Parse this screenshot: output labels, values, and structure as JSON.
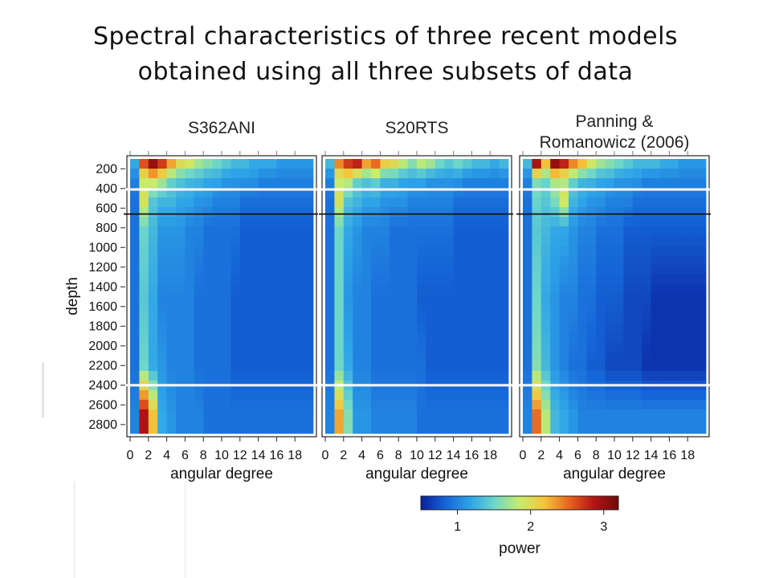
{
  "slide": {
    "title_line1": "Spectral characteristics of three recent models",
    "title_line2": "obtained using all three subsets of data"
  },
  "chart_data": {
    "type": "heatmap",
    "ylabel": "depth",
    "xlabel": "angular degree",
    "x_ticks": [
      "0",
      "2",
      "4",
      "6",
      "8",
      "10",
      "12",
      "14",
      "16",
      "18"
    ],
    "y_ticks": [
      "200",
      "400",
      "600",
      "800",
      "1000",
      "1200",
      "1400",
      "1600",
      "1800",
      "2000",
      "2200",
      "2400",
      "2600",
      "2800"
    ],
    "ylim": [
      100,
      2891
    ],
    "xlim": [
      0,
      20
    ],
    "reference_depths": [
      {
        "depth": 410,
        "color": "#ffffff"
      },
      {
        "depth": 660,
        "color": "#111111"
      },
      {
        "depth": 2400,
        "color": "#ffffff"
      }
    ],
    "colorbar": {
      "label": "power",
      "ticks": [
        "1",
        "2",
        "3"
      ],
      "range": [
        0.5,
        3.2
      ],
      "colors": [
        "#0a1f9e",
        "#1565d8",
        "#2ea4e8",
        "#6ed8c8",
        "#c8ec6a",
        "#f5c43a",
        "#e8641e",
        "#b41414",
        "#6e0a0a"
      ]
    },
    "panels": [
      {
        "title_lines": [
          "S362ANI"
        ],
        "profile": [
          [
            150,
            [
              1.2,
              2.6,
              3.0,
              2.7,
              2.3,
              2.0,
              1.9,
              1.7,
              1.6,
              1.5,
              1.4,
              1.3,
              1.3,
              1.2,
              1.2,
              1.2,
              1.1,
              1.1,
              1.1,
              1.1
            ]
          ],
          [
            300,
            [
              1.0,
              1.8,
              2.0,
              1.8,
              1.5,
              1.4,
              1.3,
              1.3,
              1.2,
              1.2,
              1.1,
              1.1,
              1.1,
              1.1,
              1.0,
              1.0,
              1.0,
              1.0,
              1.0,
              1.0
            ]
          ],
          [
            500,
            [
              0.9,
              2.0,
              1.4,
              1.3,
              1.3,
              1.2,
              1.2,
              1.1,
              1.1,
              1.0,
              1.0,
              1.0,
              0.9,
              0.9,
              0.9,
              0.9,
              0.9,
              0.9,
              0.9,
              0.9
            ]
          ],
          [
            800,
            [
              0.9,
              1.5,
              1.3,
              1.1,
              1.1,
              1.1,
              1.0,
              1.0,
              0.9,
              0.9,
              0.9,
              0.9,
              0.8,
              0.8,
              0.8,
              0.8,
              0.8,
              0.8,
              0.8,
              0.8
            ]
          ],
          [
            1500,
            [
              0.9,
              1.4,
              1.2,
              1.0,
              1.0,
              1.0,
              1.0,
              0.9,
              0.9,
              0.9,
              0.9,
              0.8,
              0.8,
              0.8,
              0.8,
              0.8,
              0.8,
              0.8,
              0.8,
              0.8
            ]
          ],
          [
            2200,
            [
              0.9,
              1.5,
              1.2,
              1.1,
              1.0,
              1.0,
              1.0,
              0.9,
              0.9,
              0.9,
              0.9,
              0.8,
              0.8,
              0.8,
              0.8,
              0.8,
              0.8,
              0.8,
              0.8,
              0.8
            ]
          ],
          [
            2700,
            [
              1.0,
              2.9,
              2.2,
              1.2,
              1.1,
              1.0,
              1.0,
              1.0,
              0.9,
              0.9,
              0.9,
              0.9,
              0.9,
              0.9,
              0.9,
              0.9,
              0.9,
              0.9,
              0.9,
              0.9
            ]
          ]
        ]
      },
      {
        "title_lines": [
          "S20RTS"
        ],
        "profile": [
          [
            150,
            [
              1.3,
              2.4,
              2.7,
              2.8,
              2.3,
              2.5,
              2.1,
              2.0,
              1.8,
              1.6,
              1.8,
              1.7,
              1.5,
              1.4,
              1.5,
              1.4,
              1.3,
              1.3,
              1.2,
              1.3
            ]
          ],
          [
            300,
            [
              1.0,
              1.8,
              1.9,
              1.5,
              1.4,
              1.5,
              1.3,
              1.3,
              1.2,
              1.2,
              1.2,
              1.1,
              1.1,
              1.1,
              1.1,
              1.0,
              1.0,
              1.0,
              1.0,
              1.0
            ]
          ],
          [
            500,
            [
              0.9,
              2.0,
              1.4,
              1.3,
              1.2,
              1.2,
              1.1,
              1.1,
              1.1,
              1.0,
              1.0,
              1.0,
              1.0,
              1.0,
              0.9,
              0.9,
              0.9,
              0.9,
              0.9,
              0.9
            ]
          ],
          [
            800,
            [
              0.9,
              1.5,
              1.2,
              1.1,
              1.0,
              1.0,
              1.0,
              0.9,
              0.9,
              0.9,
              0.9,
              0.9,
              0.9,
              0.9,
              0.8,
              0.8,
              0.8,
              0.8,
              0.8,
              0.8
            ]
          ],
          [
            1500,
            [
              0.9,
              1.5,
              1.1,
              1.0,
              1.0,
              0.9,
              0.9,
              0.9,
              0.9,
              0.9,
              0.8,
              0.8,
              0.8,
              0.8,
              0.8,
              0.8,
              0.8,
              0.8,
              0.8,
              0.8
            ]
          ],
          [
            2200,
            [
              0.9,
              1.5,
              1.2,
              1.0,
              1.0,
              0.9,
              0.9,
              0.9,
              0.9,
              0.9,
              0.9,
              0.8,
              0.8,
              0.8,
              0.8,
              0.8,
              0.8,
              0.8,
              0.8,
              0.8
            ]
          ],
          [
            2700,
            [
              1.0,
              2.3,
              1.6,
              1.1,
              1.1,
              1.0,
              1.0,
              1.0,
              1.0,
              1.0,
              0.9,
              0.9,
              0.9,
              0.9,
              0.9,
              0.9,
              0.9,
              0.9,
              0.9,
              0.9
            ]
          ]
        ]
      },
      {
        "title_lines": [
          "Panning &",
          "Romanowicz (2006)"
        ],
        "profile": [
          [
            150,
            [
              1.3,
              2.9,
              2.2,
              3.0,
              2.8,
              2.4,
              2.2,
              1.9,
              1.7,
              1.6,
              1.5,
              1.4,
              1.3,
              1.3,
              1.3,
              1.2,
              1.2,
              1.1,
              1.1,
              1.1
            ]
          ],
          [
            300,
            [
              1.0,
              1.6,
              1.5,
              1.8,
              1.7,
              1.5,
              1.3,
              1.3,
              1.2,
              1.2,
              1.1,
              1.1,
              1.1,
              1.0,
              1.0,
              1.0,
              1.0,
              1.0,
              1.0,
              1.0
            ]
          ],
          [
            500,
            [
              0.9,
              1.5,
              1.4,
              1.6,
              2.0,
              1.3,
              1.2,
              1.1,
              1.1,
              1.0,
              1.0,
              1.0,
              0.9,
              0.9,
              0.9,
              0.9,
              0.9,
              0.9,
              0.9,
              0.9
            ]
          ],
          [
            800,
            [
              0.9,
              1.4,
              1.3,
              1.2,
              1.2,
              1.1,
              1.0,
              1.0,
              0.9,
              0.9,
              0.9,
              0.8,
              0.8,
              0.8,
              0.8,
              0.8,
              0.8,
              0.8,
              0.8,
              0.8
            ]
          ],
          [
            1500,
            [
              0.9,
              1.5,
              1.2,
              1.1,
              1.0,
              1.0,
              0.9,
              0.9,
              0.8,
              0.8,
              0.8,
              0.7,
              0.7,
              0.7,
              0.6,
              0.6,
              0.6,
              0.6,
              0.6,
              0.6
            ]
          ],
          [
            2200,
            [
              0.9,
              1.6,
              1.3,
              1.1,
              1.0,
              0.9,
              0.9,
              0.8,
              0.8,
              0.7,
              0.7,
              0.7,
              0.7,
              0.6,
              0.6,
              0.6,
              0.6,
              0.6,
              0.6,
              0.6
            ]
          ],
          [
            2700,
            [
              1.0,
              2.5,
              1.8,
              1.3,
              1.2,
              1.1,
              1.0,
              1.0,
              1.0,
              1.0,
              1.0,
              1.0,
              1.0,
              1.0,
              1.0,
              1.0,
              1.0,
              1.0,
              1.0,
              1.0
            ]
          ]
        ]
      }
    ]
  }
}
